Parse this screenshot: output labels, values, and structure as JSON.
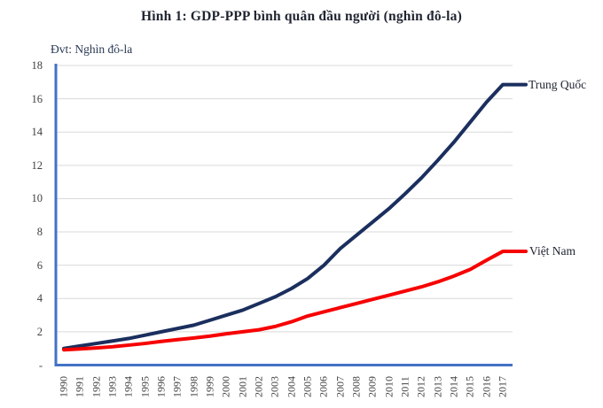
{
  "chart": {
    "title": "Hình 1: GDP-PPP bình quân đầu người (nghìn đô-la)",
    "unit_label": "Đvt: Nghìn đô-la"
  },
  "chart_data": {
    "type": "line",
    "title": "Hình 1: GDP-PPP bình quân đầu người (nghìn đô-la)",
    "unit_note": "Đvt: Nghìn đô-la",
    "categories": [
      "1990",
      "1991",
      "1992",
      "1993",
      "1994",
      "1995",
      "1996",
      "1997",
      "1998",
      "1999",
      "2000",
      "2001",
      "2002",
      "2003",
      "2004",
      "2005",
      "2006",
      "2007",
      "2008",
      "2009",
      "2010",
      "2011",
      "2012",
      "2013",
      "2014",
      "2015",
      "2016",
      "2017"
    ],
    "series": [
      {
        "name": "Trung Quốc",
        "color": "#1b2f5e",
        "values": [
          1.0,
          1.15,
          1.3,
          1.45,
          1.6,
          1.8,
          2.0,
          2.2,
          2.4,
          2.7,
          3.0,
          3.3,
          3.7,
          4.1,
          4.6,
          5.2,
          6.0,
          7.0,
          7.8,
          8.6,
          9.4,
          10.3,
          11.25,
          12.3,
          13.4,
          14.6,
          15.8,
          16.85
        ]
      },
      {
        "name": "Việt Nam",
        "color": "#f60000",
        "values": [
          0.92,
          0.97,
          1.03,
          1.1,
          1.2,
          1.3,
          1.42,
          1.53,
          1.63,
          1.74,
          1.88,
          2.0,
          2.12,
          2.32,
          2.6,
          2.95,
          3.2,
          3.45,
          3.7,
          3.95,
          4.2,
          4.45,
          4.7,
          5.0,
          5.35,
          5.75,
          6.3,
          6.83
        ]
      }
    ],
    "y_axis": {
      "min": 0,
      "max": 18,
      "step": 2,
      "tick_labels_top_to_bottom": [
        "18",
        "16",
        "14",
        "12",
        "10",
        "8",
        "6",
        "4",
        "2",
        "-"
      ]
    },
    "x_axis": {
      "label_rotation_deg": -90
    },
    "grid": true,
    "legend_position": "right-of-line-ends",
    "colors": {
      "axis_line": "#4472c4",
      "gridline": "#d9d9d9",
      "tick_text": "#404040",
      "title_text": "#1f2430"
    }
  }
}
